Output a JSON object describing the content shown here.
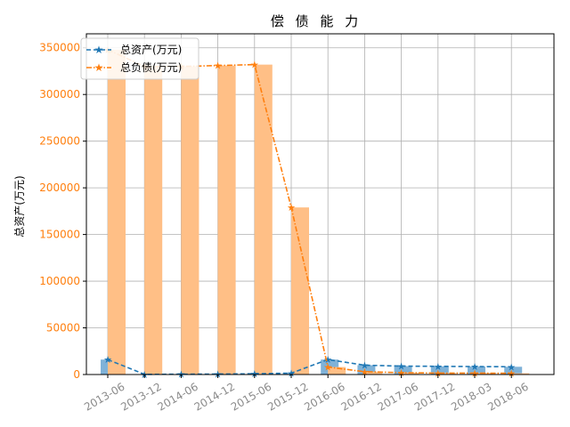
{
  "chart_data": {
    "type": "bar",
    "title": "偿 债 能 力",
    "ylabel": "总资产(万元)",
    "xlabel": "",
    "categories": [
      "2013-06",
      "2013-12",
      "2014-06",
      "2014-12",
      "2015-06",
      "2015-12",
      "2016-06",
      "2016-12",
      "2017-06",
      "2017-12",
      "2018-03",
      "2018-06"
    ],
    "ylim": [
      0,
      365000
    ],
    "yticks": [
      0,
      50000,
      100000,
      150000,
      200000,
      250000,
      300000,
      350000
    ],
    "grid": true,
    "legend_position": "top-left",
    "series": [
      {
        "name": "总资产(万元)",
        "color": "#1f77b4",
        "bar_color": "#7fb2d8",
        "line_style": "dashed",
        "marker": "star",
        "values": [
          16000,
          200,
          300,
          500,
          800,
          1500,
          16000,
          10000,
          9000,
          8800,
          8500,
          8300
        ]
      },
      {
        "name": "总负债(万元)",
        "color": "#ff7f0e",
        "bar_color": "#ffbf86",
        "line_style": "dashdot",
        "marker": "star",
        "values": [
          348000,
          330000,
          330000,
          331000,
          332000,
          179000,
          8000,
          3000,
          2000,
          1500,
          1500,
          1300
        ]
      }
    ]
  }
}
